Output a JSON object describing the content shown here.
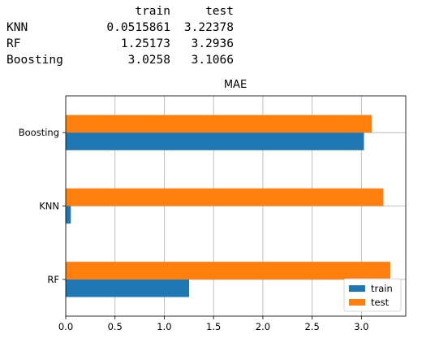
{
  "table": {
    "header": [
      "",
      "train",
      "test"
    ],
    "rows": [
      [
        "KNN",
        "0.0515861",
        "3.22378"
      ],
      [
        "RF",
        "1.25173",
        "3.2936"
      ],
      [
        "Boosting",
        "3.0258",
        "3.1066"
      ]
    ]
  },
  "chart_data": {
    "type": "bar",
    "orientation": "horizontal",
    "title": "MAE",
    "xlabel": "",
    "ylabel": "",
    "categories": [
      "RF",
      "KNN",
      "Boosting"
    ],
    "series": [
      {
        "name": "train",
        "values": [
          1.25173,
          0.0515861,
          3.0258
        ],
        "color": "#1f77b4"
      },
      {
        "name": "test",
        "values": [
          3.2936,
          3.22378,
          3.1066
        ],
        "color": "#ff7f0e"
      }
    ],
    "xlim": [
      0,
      3.45
    ],
    "xticks": [
      0.0,
      0.5,
      1.0,
      1.5,
      2.0,
      2.5,
      3.0
    ],
    "xtick_labels": [
      "0.0",
      "0.5",
      "1.0",
      "1.5",
      "2.0",
      "2.5",
      "3.0"
    ],
    "grid": true,
    "legend": "bottom-right"
  }
}
